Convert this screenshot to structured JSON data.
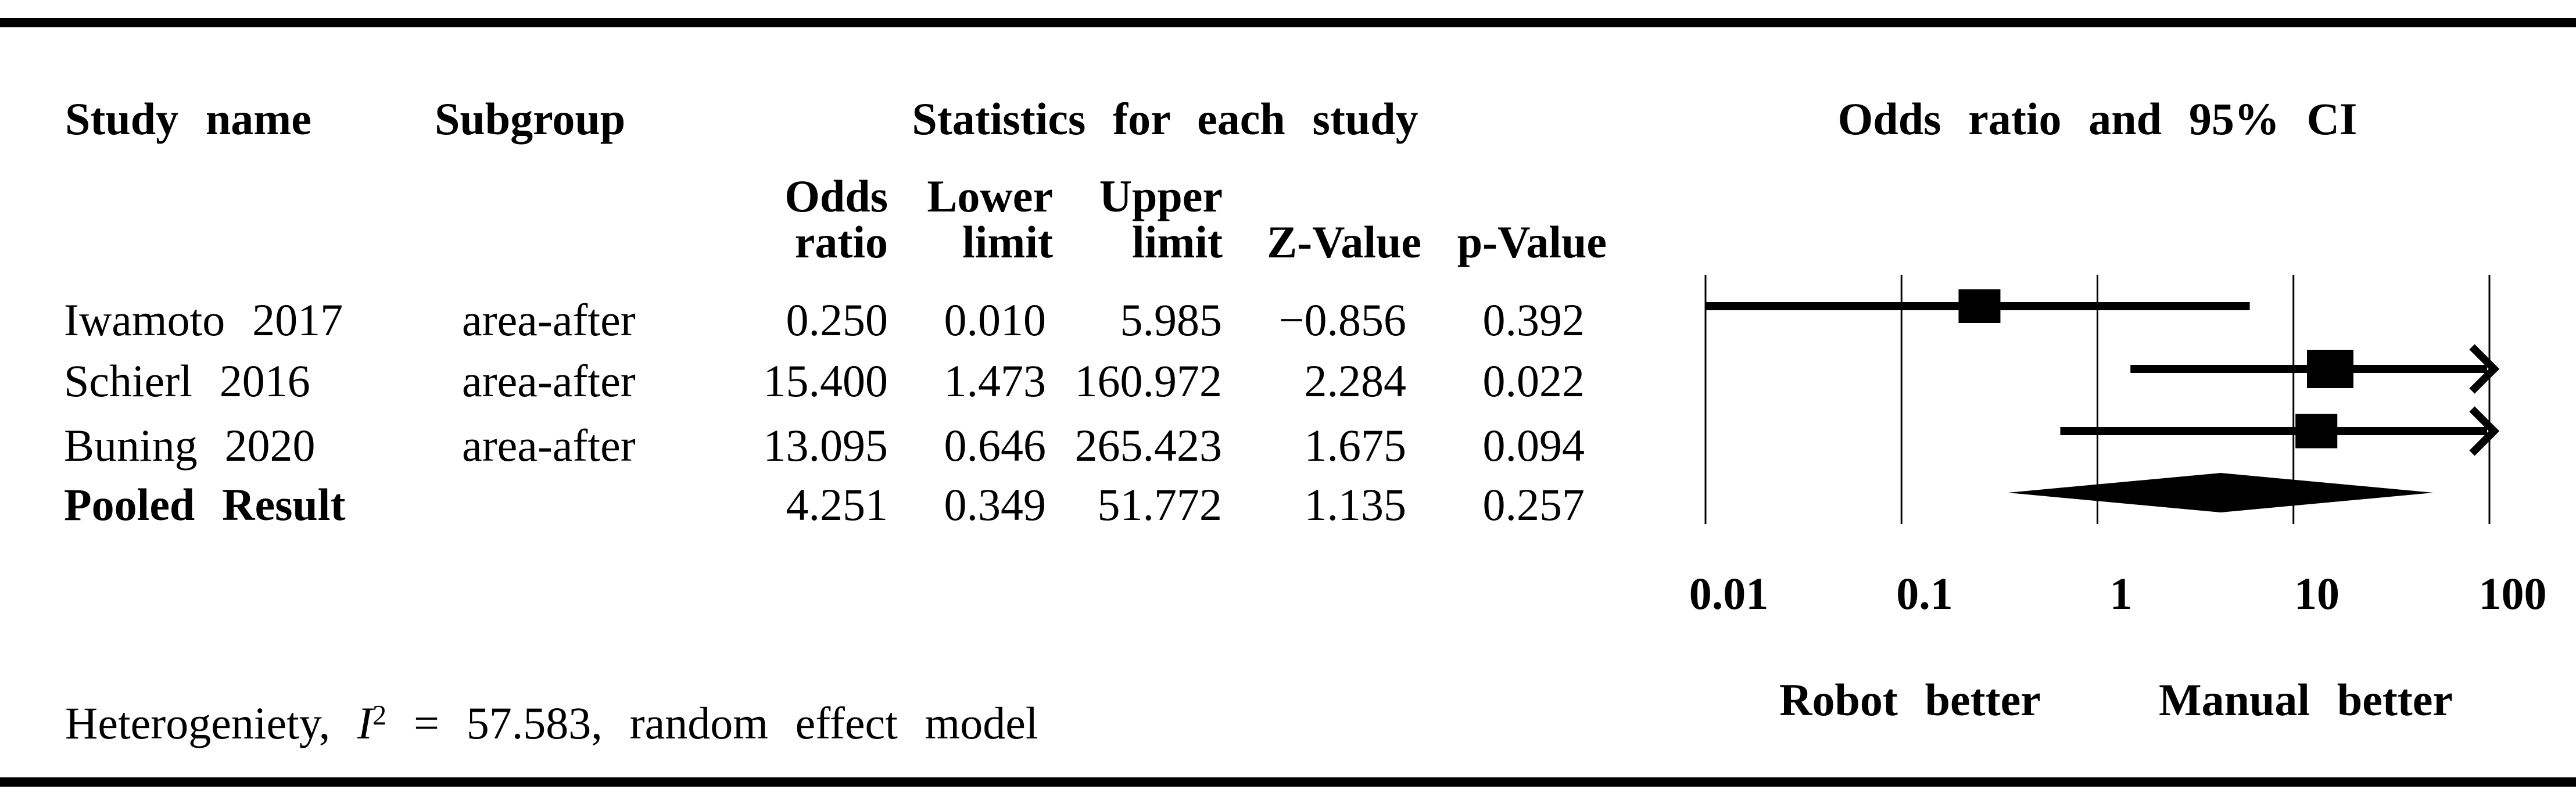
{
  "colors": {
    "ink": "#000000",
    "background": "#ffffff"
  },
  "table": {
    "col_study": "Study name",
    "col_subgroup": "Subgroup",
    "stats_group_header": "Statistics for each study",
    "sub_headers": {
      "odds_line1": "Odds",
      "odds_line2": "ratio",
      "lower_line1": "Lower",
      "lower_line2": "limit",
      "upper_line1": "Upper",
      "upper_line2": "limit",
      "z": "Z-Value",
      "p": "p-Value"
    },
    "rows": [
      {
        "study": "Iwamoto 2017",
        "subgroup": "area-after",
        "odds": "0.250",
        "lower": "0.010",
        "upper": "5.985",
        "z": "−0.856",
        "p": "0.392"
      },
      {
        "study": "Schierl 2016",
        "subgroup": "area-after",
        "odds": "15.400",
        "lower": "1.473",
        "upper": "160.972",
        "z": "2.284",
        "p": "0.022"
      },
      {
        "study": "Buning 2020",
        "subgroup": "area-after",
        "odds": "13.095",
        "lower": "0.646",
        "upper": "265.423",
        "z": "1.675",
        "p": "0.094"
      },
      {
        "study": "Pooled Result",
        "subgroup": "",
        "odds": "4.251",
        "lower": "0.349",
        "upper": "51.772",
        "z": "1.135",
        "p": "0.257"
      }
    ]
  },
  "plot": {
    "title": "Odds ratio and 95% CI",
    "axis_ticks": [
      "0.01",
      "0.1",
      "1",
      "10",
      "100"
    ],
    "left_label": "Robot better",
    "right_label": "Manual better"
  },
  "footer": {
    "het_prefix": "Heterogeniety, ",
    "het_symbol": "I",
    "het_exponent": "2",
    "het_suffix": " = 57.583, random effect model"
  },
  "chart_data": {
    "type": "forest",
    "title": "Odds ratio and 95% CI",
    "x_scale": "log",
    "xlim": [
      0.01,
      100
    ],
    "x_ticks": [
      0.01,
      0.1,
      1,
      10,
      100
    ],
    "grid": "vertical-lines",
    "x_axis_region_labels": {
      "left": "Robot better",
      "right": "Manual better"
    },
    "studies": [
      {
        "name": "Iwamoto 2017",
        "subgroup": "area-after",
        "odds_ratio": 0.25,
        "lower": 0.01,
        "upper": 5.985,
        "z_value": -0.856,
        "p_value": 0.392,
        "marker": "square",
        "marker_w": 72,
        "marker_h": 58
      },
      {
        "name": "Schierl 2016",
        "subgroup": "area-after",
        "odds_ratio": 15.4,
        "lower": 1.473,
        "upper": 160.972,
        "z_value": 2.284,
        "p_value": 0.022,
        "marker": "square",
        "marker_w": 80,
        "marker_h": 66
      },
      {
        "name": "Buning 2020",
        "subgroup": "area-after",
        "odds_ratio": 13.095,
        "lower": 0.646,
        "upper": 265.423,
        "z_value": 1.675,
        "p_value": 0.094,
        "marker": "square",
        "marker_w": 72,
        "marker_h": 59
      },
      {
        "name": "Pooled Result",
        "subgroup": "",
        "odds_ratio": 4.251,
        "lower": 0.349,
        "upper": 51.772,
        "z_value": 1.135,
        "p_value": 0.257,
        "marker": "diamond",
        "diamond_half_height": 34
      }
    ],
    "heterogeneity_I2": 57.583,
    "model": "random effect model"
  }
}
